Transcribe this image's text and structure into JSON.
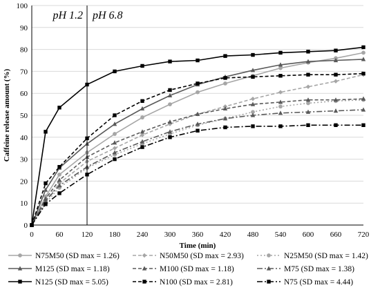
{
  "chart_data": {
    "type": "line",
    "xlabel": "Time (min)",
    "ylabel": "Caffeine release amount (%)",
    "xlim": [
      0,
      720
    ],
    "ylim": [
      0,
      100
    ],
    "x_ticks": [
      "0",
      "60",
      "120",
      "180",
      "240",
      "300",
      "360",
      "420",
      "480",
      "540",
      "600",
      "660",
      "720"
    ],
    "y_ticks": [
      "0",
      "10",
      "20",
      "30",
      "40",
      "50",
      "60",
      "70",
      "80",
      "90",
      "100"
    ],
    "phase_divider_x": 120,
    "annotations": [
      "pH 1.2",
      "pH 6.8"
    ],
    "grid": "horizontal",
    "legend_position": "bottom",
    "series": [
      {
        "name": "N75M50 (SD max = 1.26)",
        "color": "#a6a6a6",
        "dash": "solid",
        "marker": "circle",
        "x": [
          0,
          30,
          60,
          120,
          180,
          240,
          300,
          360,
          420,
          480,
          540,
          600,
          660,
          720
        ],
        "y": [
          0,
          13,
          23,
          33,
          41.5,
          49,
          55,
          60.5,
          64.5,
          68,
          71.5,
          74,
          76,
          78.5
        ]
      },
      {
        "name": "N50M50 (SD max = 2.93)",
        "color": "#a6a6a6",
        "dash": "5,3",
        "marker": "diamond",
        "x": [
          0,
          30,
          60,
          120,
          180,
          240,
          300,
          360,
          420,
          480,
          540,
          600,
          660,
          720
        ],
        "y": [
          0,
          11,
          19,
          29,
          35,
          41,
          46,
          50.5,
          54,
          57.5,
          60.5,
          63,
          65.5,
          68.5
        ]
      },
      {
        "name": "N25M50 (SD max = 1.42)",
        "color": "#a6a6a6",
        "dash": "2,3",
        "marker": "circle",
        "x": [
          0,
          30,
          60,
          120,
          180,
          240,
          300,
          360,
          420,
          480,
          540,
          600,
          660,
          720
        ],
        "y": [
          0,
          10,
          17,
          26,
          32,
          37,
          41.5,
          45.5,
          48.5,
          51.5,
          54,
          55.5,
          56.5,
          57
        ]
      },
      {
        "name": "M125 (SD max = 1.18)",
        "color": "#595959",
        "dash": "solid",
        "marker": "triangle",
        "x": [
          0,
          30,
          60,
          120,
          180,
          240,
          300,
          360,
          420,
          480,
          540,
          600,
          660,
          720
        ],
        "y": [
          0,
          16,
          26,
          37,
          46,
          53,
          59,
          64,
          67.5,
          70.5,
          73,
          74.5,
          75,
          75.5
        ]
      },
      {
        "name": "M100 (SD max = 1.18)",
        "color": "#595959",
        "dash": "5,3",
        "marker": "triangle",
        "x": [
          0,
          30,
          60,
          120,
          180,
          240,
          300,
          360,
          420,
          480,
          540,
          600,
          660,
          720
        ],
        "y": [
          0,
          12,
          20.5,
          31,
          37.5,
          42.5,
          47,
          50.5,
          53,
          55,
          56,
          57,
          57,
          57.5
        ]
      },
      {
        "name": "M75 (SD max = 1.38)",
        "color": "#595959",
        "dash": "8,3,2,3",
        "marker": "triangle",
        "x": [
          0,
          30,
          60,
          120,
          180,
          240,
          300,
          360,
          420,
          480,
          540,
          600,
          660,
          720
        ],
        "y": [
          0,
          11,
          18,
          26.5,
          33,
          38,
          42.5,
          46,
          48.5,
          50,
          51,
          51.5,
          52,
          52.5
        ]
      },
      {
        "name": "N125 (SD max = 5.05)",
        "color": "#000000",
        "dash": "solid",
        "marker": "square",
        "x": [
          0,
          30,
          60,
          120,
          180,
          240,
          300,
          360,
          420,
          480,
          540,
          600,
          660,
          720
        ],
        "y": [
          0,
          42.5,
          53.5,
          64,
          70,
          72.5,
          74.5,
          75,
          77,
          77.5,
          78.5,
          79,
          79.5,
          81
        ]
      },
      {
        "name": "N100 (SD max = 2.81)",
        "color": "#000000",
        "dash": "5,3",
        "marker": "square",
        "x": [
          0,
          30,
          60,
          120,
          180,
          240,
          300,
          360,
          420,
          480,
          540,
          600,
          660,
          720
        ],
        "y": [
          0,
          19,
          26.5,
          39.5,
          50,
          56.5,
          61.5,
          64.5,
          67,
          67.5,
          68,
          68.5,
          68.5,
          69
        ]
      },
      {
        "name": "N75 (SD max = 4.44)",
        "color": "#000000",
        "dash": "8,3,2,3",
        "marker": "square",
        "x": [
          0,
          30,
          60,
          120,
          180,
          240,
          300,
          360,
          420,
          480,
          540,
          600,
          660,
          720
        ],
        "y": [
          0,
          9.5,
          14.5,
          23,
          30,
          35.5,
          40,
          43,
          44.5,
          45,
          45,
          45.5,
          45.5,
          45.5
        ]
      }
    ]
  }
}
